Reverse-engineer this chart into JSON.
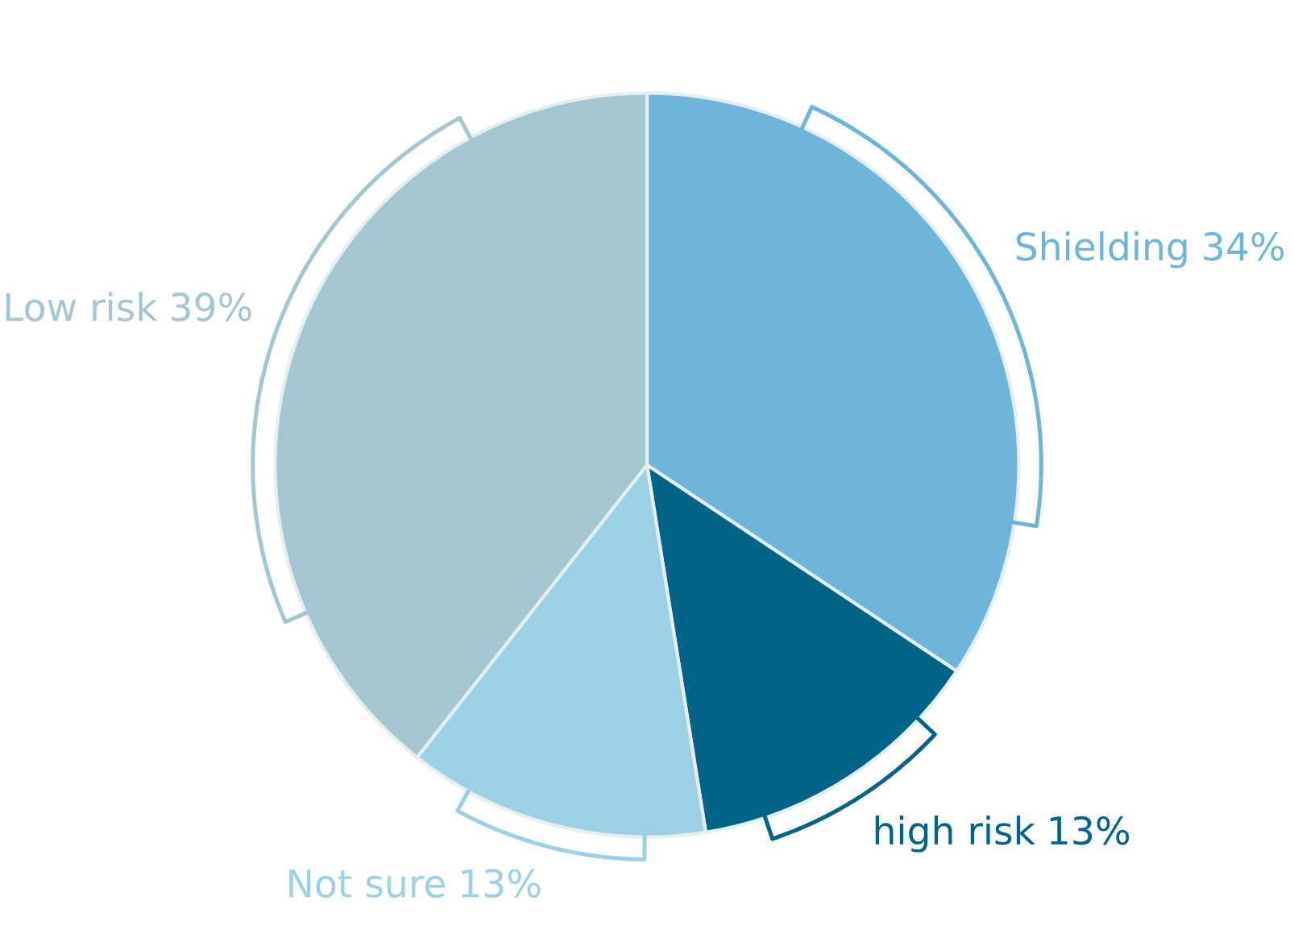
{
  "chart_data": {
    "type": "pie",
    "categories": [
      "Shielding",
      "high risk",
      "Not sure",
      "Low risk"
    ],
    "values": [
      34,
      13,
      13,
      39
    ],
    "value_labels": [
      "34%",
      "13%",
      "13%",
      "39%"
    ],
    "colors": [
      "#6db6da",
      "#006489",
      "#9bd0e5",
      "#a4c6d0"
    ]
  }
}
